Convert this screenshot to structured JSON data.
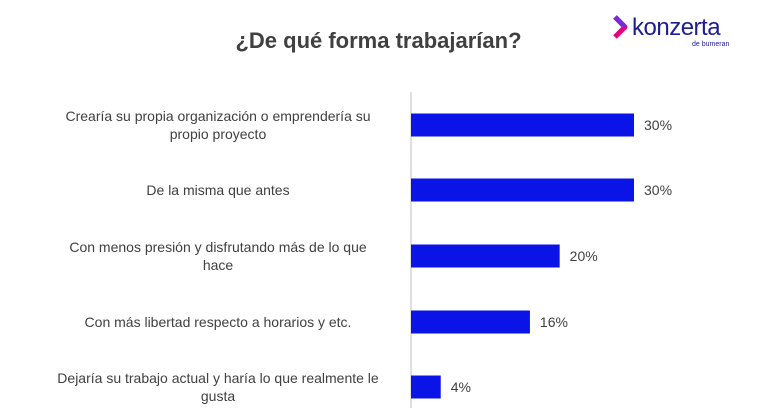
{
  "title": "¿De qué forma trabajarían?",
  "logo": {
    "name": "konzerta",
    "tagline": "de bumeran",
    "color": "#1d1d8f",
    "accent": "#e6007e"
  },
  "chart_data": {
    "type": "bar",
    "orientation": "horizontal",
    "title": "¿De qué forma trabajarían?",
    "categories": [
      [
        "Crearía su propia organización o emprendería su",
        "propio proyecto"
      ],
      [
        "De la misma que antes"
      ],
      [
        "Con menos presión y disfrutando más de lo que",
        "hace"
      ],
      [
        "Con más libertad respecto a horarios y etc."
      ],
      [
        "Dejaría su trabajo actual y haría lo que realmente le",
        "gusta"
      ]
    ],
    "values": [
      30,
      30,
      20,
      16,
      4
    ],
    "value_labels": [
      "30%",
      "30%",
      "20%",
      "16%",
      "4%"
    ],
    "bar_color": "#0a14e6",
    "xlim": [
      0,
      30
    ],
    "grid": false,
    "legend": "none"
  }
}
